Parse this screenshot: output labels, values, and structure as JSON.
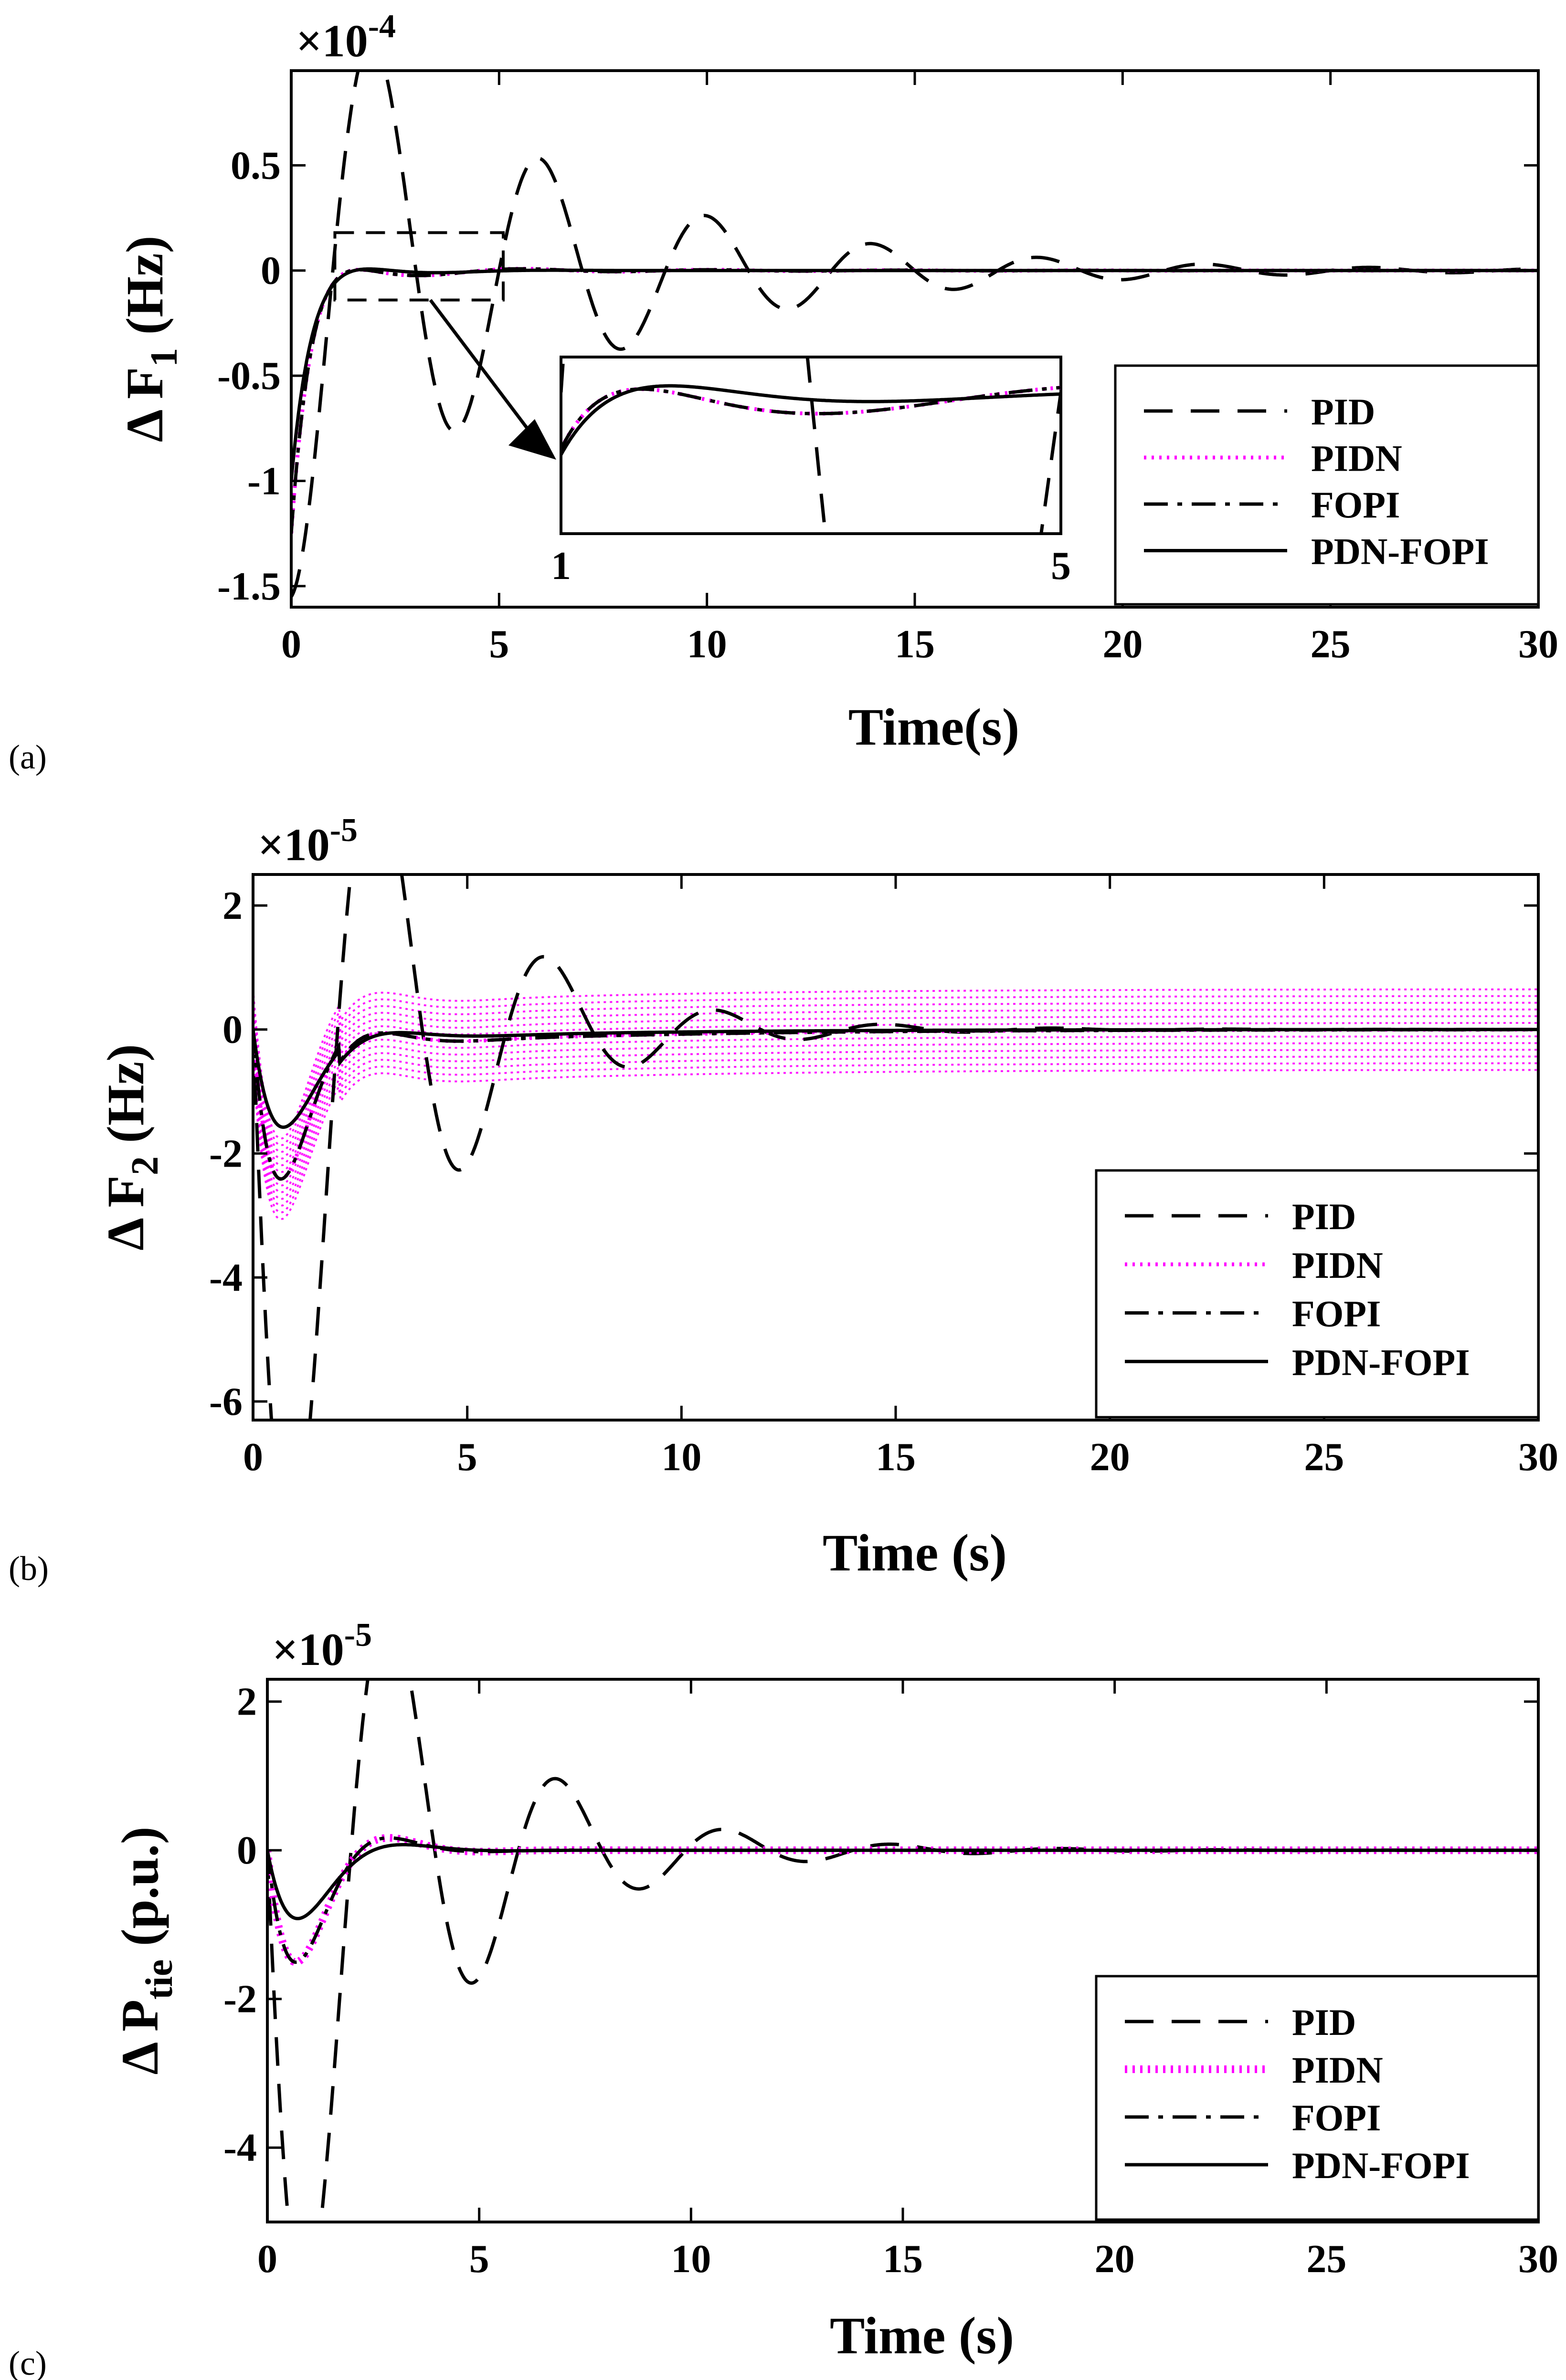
{
  "figure": {
    "legend_entries": [
      "PID",
      "PIDN",
      "FOPI",
      "PDN-FOPI"
    ],
    "colors": {
      "pid": "#000000",
      "pidn": "#ff00ff",
      "fopi": "#000000",
      "pdnfopi": "#000000"
    }
  },
  "chart_data": [
    {
      "id": "a",
      "panel_label": "(a)",
      "type": "line",
      "xlabel": "Time(s)",
      "ylabel": "Δ F1 (Hz)",
      "y_exponent_label": "×10^-4",
      "xlim": [
        0,
        30
      ],
      "ylim": [
        -1.6,
        0.95
      ],
      "xticks": [
        0,
        5,
        10,
        15,
        20,
        25,
        30
      ],
      "yticks": [
        -1.5,
        -1,
        -0.5,
        0,
        0.5
      ],
      "ytick_labels": [
        "-1.5",
        "-1",
        "-0.5",
        "0",
        "0.5"
      ],
      "legend_position": "lower-right",
      "series": [
        {
          "name": "PID",
          "init": -1.55,
          "amp": 3.1,
          "tau": 5.4,
          "period": 3.95,
          "phase": -0.1
        },
        {
          "name": "PIDN",
          "init": -1.2,
          "amp": 1.5,
          "tau": 0.9,
          "period": 4.6,
          "phase": 0.0
        },
        {
          "name": "FOPI",
          "init": -1.2,
          "amp": 1.5,
          "tau": 0.9,
          "period": 4.6,
          "phase": 0.0
        },
        {
          "name": "PDN-FOPI",
          "init": -1.0,
          "amp": 1.1,
          "tau": 0.85,
          "period": 5.2,
          "phase": 0.0
        }
      ],
      "inset": {
        "x_range": [
          1,
          5
        ],
        "x_labels": [
          "1",
          "5"
        ]
      }
    },
    {
      "id": "b",
      "panel_label": "(b)",
      "type": "line",
      "xlabel": "Time (s)",
      "ylabel": "Δ F2 (Hz)",
      "y_exponent_label": "×10^-5",
      "xlim": [
        0,
        30
      ],
      "ylim": [
        -6.3,
        2.5
      ],
      "xticks": [
        0,
        5,
        10,
        15,
        20,
        25,
        30
      ],
      "yticks": [
        -6,
        -4,
        -2,
        0,
        2
      ],
      "ytick_labels": [
        "-6",
        "-4",
        "-2",
        "0",
        "2"
      ],
      "legend_position": "lower-right",
      "series": [
        {
          "name": "PID",
          "init": 0,
          "amp": 11.0,
          "tau": 3.2,
          "period": 3.95,
          "phase": 0.0
        },
        {
          "name": "PIDN",
          "init": 0,
          "amp": 7.0,
          "tau": 1.1,
          "period": 4.8,
          "phase": 0.0,
          "band": 0.65
        },
        {
          "name": "FOPI",
          "init": 0,
          "amp": 6.6,
          "tau": 1.1,
          "period": 4.8,
          "phase": 0.0
        },
        {
          "name": "PDN-FOPI",
          "init": 0,
          "amp": 4.6,
          "tau": 1.1,
          "period": 5.4,
          "phase": 0.0
        }
      ]
    },
    {
      "id": "c",
      "panel_label": "(c)",
      "type": "line",
      "xlabel": "Time (s)",
      "ylabel": "Δ Ptie (p.u.)",
      "y_exponent_label": "×10^-5",
      "xlim": [
        0,
        30
      ],
      "ylim": [
        -5.0,
        2.3
      ],
      "xticks": [
        0,
        5,
        10,
        15,
        20,
        25,
        30
      ],
      "yticks": [
        -4,
        -2,
        0,
        2
      ],
      "ytick_labels": [
        "-4",
        "-2",
        "0",
        "2"
      ],
      "legend_position": "lower-right",
      "series": [
        {
          "name": "PID",
          "init": 0,
          "amp": 8.0,
          "tau": 3.2,
          "period": 3.95,
          "phase": 0.0
        },
        {
          "name": "PIDN",
          "init": 0,
          "amp": 3.8,
          "tau": 1.0,
          "period": 4.6,
          "phase": 0.0
        },
        {
          "name": "FOPI",
          "init": 0,
          "amp": 3.8,
          "tau": 1.0,
          "period": 4.6,
          "phase": 0.0
        },
        {
          "name": "PDN-FOPI",
          "init": 0,
          "amp": 2.6,
          "tau": 1.0,
          "period": 5.2,
          "phase": 0.0
        }
      ]
    }
  ]
}
